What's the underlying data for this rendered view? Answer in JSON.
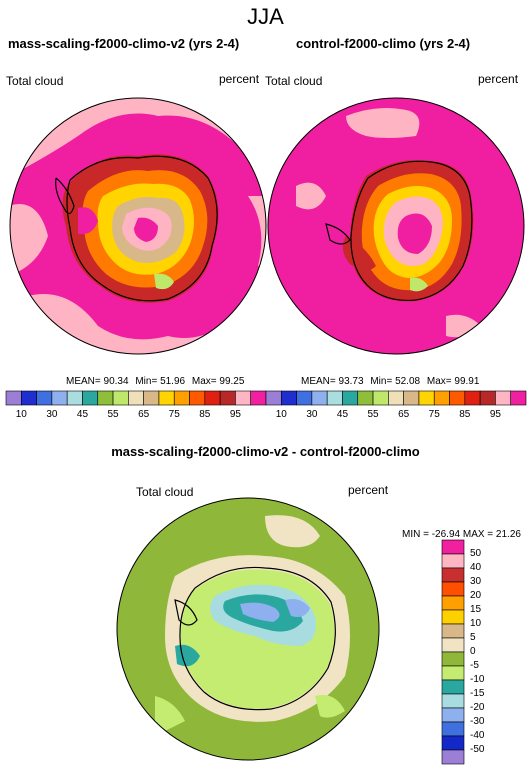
{
  "header": {
    "season": "JJA"
  },
  "panels": [
    {
      "title": "mass-scaling-f2000-climo-v2 (yrs 2-4)",
      "variable": "Total cloud",
      "units": "percent",
      "stats": {
        "mean": "90.34",
        "min": "51.96",
        "max": "99.25"
      }
    },
    {
      "title": "control-f2000-climo (yrs 2-4)",
      "variable": "Total cloud",
      "units": "percent",
      "stats": {
        "mean": "93.73",
        "min": "52.08",
        "max": "99.91"
      }
    },
    {
      "title": "mass-scaling-f2000-climo-v2 - control-f2000-climo",
      "variable": "Total cloud",
      "units": "percent",
      "minmax": "MIN = -26.94 MAX =  21.26"
    }
  ],
  "labels": {
    "mean": "MEAN=",
    "min": "Min=",
    "max": "Max="
  },
  "colorbar_top": {
    "ticks": [
      "10",
      "30",
      "45",
      "55",
      "65",
      "75",
      "85",
      "95"
    ],
    "colors": [
      "#9b7fd6",
      "#1f2ecf",
      "#3f6fe0",
      "#8fb0ee",
      "#a9dde0",
      "#2aa8a0",
      "#8fbf3a",
      "#bfe86a",
      "#f0e0b8",
      "#d8b888",
      "#ffd400",
      "#ffa000",
      "#ff5a00",
      "#e02010",
      "#b82828",
      "#ffb6c4",
      "#f020a0"
    ]
  },
  "colorbar_diff": {
    "ticks": [
      "50",
      "40",
      "30",
      "20",
      "15",
      "10",
      "5",
      "0",
      "-5",
      "-10",
      "-15",
      "-20",
      "-30",
      "-40",
      "-50"
    ],
    "colors": [
      "#f020a0",
      "#ffb6c4",
      "#c83030",
      "#ff5000",
      "#ffa000",
      "#ffd000",
      "#d8b888",
      "#f0e4c4",
      "#8fb83a",
      "#c4ec70",
      "#2aa8a0",
      "#a8dce0",
      "#8fb0ee",
      "#4070e0",
      "#1428c8",
      "#9b7fd6"
    ]
  },
  "colors": {
    "magenta": "#f01ea0",
    "pink": "#ffb4c4",
    "olive": "#8fb83a",
    "cream": "#f0e4c4"
  }
}
